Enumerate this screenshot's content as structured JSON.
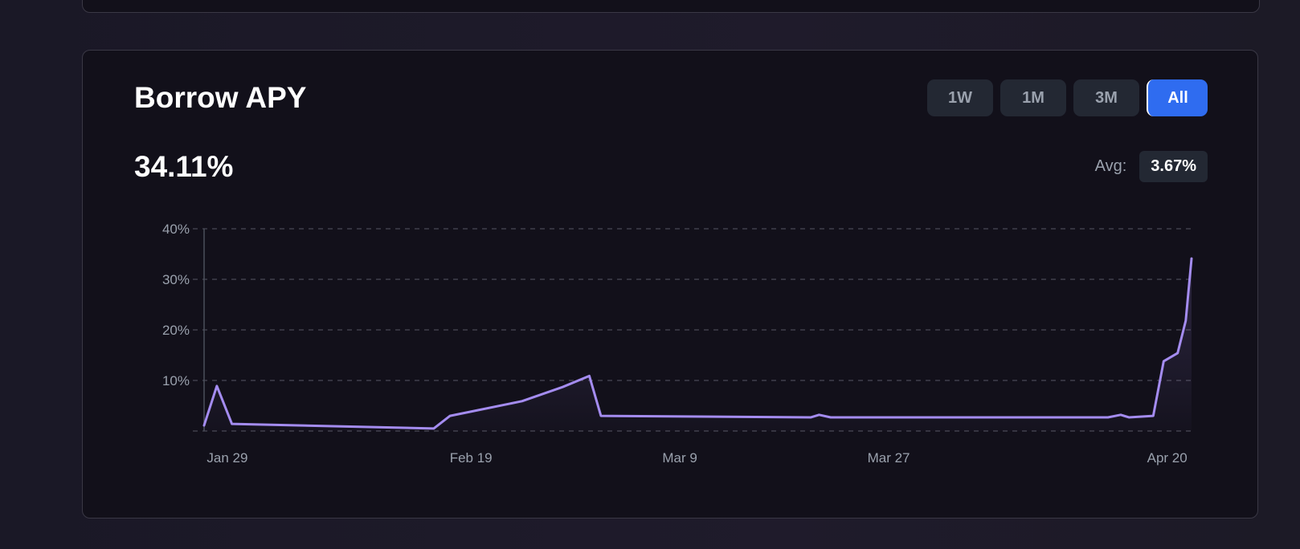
{
  "card": {
    "title": "Borrow APY",
    "current_value": "34.11%",
    "avg_label": "Avg:",
    "avg_value": "3.67%"
  },
  "ranges": [
    {
      "label": "1W",
      "active": false
    },
    {
      "label": "1M",
      "active": false
    },
    {
      "label": "3M",
      "active": false
    },
    {
      "label": "All",
      "active": true
    }
  ],
  "colors": {
    "line": "#a48cf0",
    "grid": "#4a4856",
    "active": "#2f6cf0"
  },
  "chart_data": {
    "type": "line",
    "title": "Borrow APY",
    "x_unit": "days since Jan 29",
    "xlabel": "",
    "ylabel": "",
    "ylim": [
      0,
      40
    ],
    "xlim": [
      -2,
      83.1
    ],
    "y_ticks": [
      {
        "v": 10,
        "label": "10%"
      },
      {
        "v": 20,
        "label": "20%"
      },
      {
        "v": 30,
        "label": "30%"
      },
      {
        "v": 40,
        "label": "40%"
      }
    ],
    "x_ticks": [
      {
        "v": 0,
        "label": "Jan 29"
      },
      {
        "v": 21,
        "label": "Feb 19"
      },
      {
        "v": 39,
        "label": "Mar 9"
      },
      {
        "v": 57,
        "label": "Mar 27"
      },
      {
        "v": 81,
        "label": "Apr 20"
      }
    ],
    "grid": true,
    "series": [
      {
        "name": "Borrow APY",
        "points": [
          [
            -2,
            1.1
          ],
          [
            -0.9,
            8.9
          ],
          [
            0.4,
            1.4
          ],
          [
            17.8,
            0.5
          ],
          [
            19.2,
            3.0
          ],
          [
            25.4,
            5.9
          ],
          [
            28.9,
            8.7
          ],
          [
            31.2,
            10.9
          ],
          [
            32.2,
            3.0
          ],
          [
            50.3,
            2.7
          ],
          [
            51.0,
            3.2
          ],
          [
            52.0,
            2.7
          ],
          [
            75.9,
            2.7
          ],
          [
            77.0,
            3.2
          ],
          [
            77.7,
            2.7
          ],
          [
            79.8,
            3.0
          ],
          [
            80.7,
            13.8
          ],
          [
            81.9,
            15.4
          ],
          [
            82.6,
            21.8
          ],
          [
            83.1,
            34.1
          ]
        ]
      }
    ]
  }
}
